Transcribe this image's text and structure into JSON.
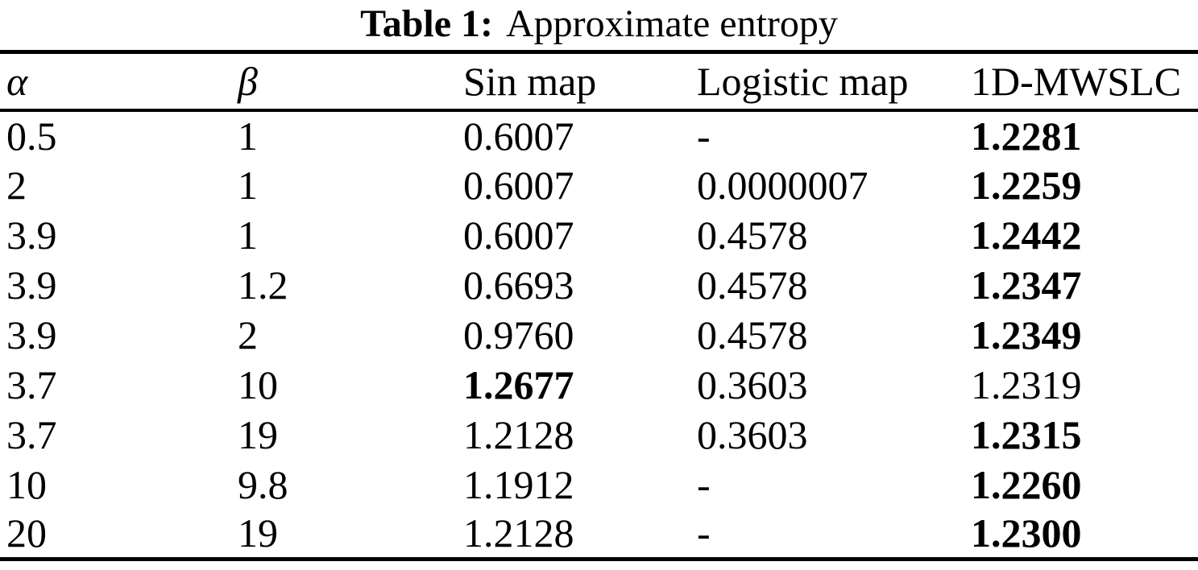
{
  "page": {
    "background_color": "#ffffff",
    "text_color": "#000000"
  },
  "table": {
    "caption": {
      "label": "Table 1:",
      "title": "Approximate entropy"
    },
    "columns": [
      "α",
      "β",
      "Sin map",
      "Logistic map",
      "1D-MWSLC"
    ],
    "rows": [
      [
        {
          "text": "0.5"
        },
        {
          "text": "1"
        },
        {
          "text": "0.6007"
        },
        {
          "text": "-"
        },
        {
          "text": "1.2281",
          "bold": true
        }
      ],
      [
        {
          "text": "2"
        },
        {
          "text": "1"
        },
        {
          "text": "0.6007"
        },
        {
          "text": "0.0000007"
        },
        {
          "text": "1.2259",
          "bold": true
        }
      ],
      [
        {
          "text": "3.9"
        },
        {
          "text": "1"
        },
        {
          "text": "0.6007"
        },
        {
          "text": "0.4578"
        },
        {
          "text": "1.2442",
          "bold": true
        }
      ],
      [
        {
          "text": "3.9"
        },
        {
          "text": "1.2"
        },
        {
          "text": "0.6693"
        },
        {
          "text": "0.4578"
        },
        {
          "text": "1.2347",
          "bold": true
        }
      ],
      [
        {
          "text": "3.9"
        },
        {
          "text": "2"
        },
        {
          "text": "0.9760"
        },
        {
          "text": "0.4578"
        },
        {
          "text": "1.2349",
          "bold": true
        }
      ],
      [
        {
          "text": "3.7"
        },
        {
          "text": "10"
        },
        {
          "text": "1.2677",
          "bold": true
        },
        {
          "text": "0.3603"
        },
        {
          "text": "1.2319"
        }
      ],
      [
        {
          "text": "3.7"
        },
        {
          "text": "19"
        },
        {
          "text": "1.2128"
        },
        {
          "text": "0.3603"
        },
        {
          "text": "1.2315",
          "bold": true
        }
      ],
      [
        {
          "text": "10"
        },
        {
          "text": "9.8"
        },
        {
          "text": "1.1912"
        },
        {
          "text": "-"
        },
        {
          "text": "1.2260",
          "bold": true
        }
      ],
      [
        {
          "text": "20"
        },
        {
          "text": "19"
        },
        {
          "text": "1.2128"
        },
        {
          "text": "-"
        },
        {
          "text": "1.2300",
          "bold": true
        }
      ]
    ]
  }
}
